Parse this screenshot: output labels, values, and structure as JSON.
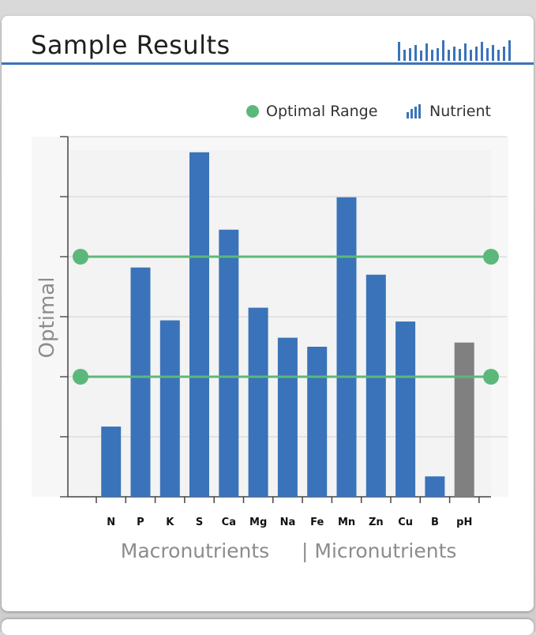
{
  "card": {
    "title": "Sample Results"
  },
  "legend": {
    "optimal_label": "Optimal Range",
    "nutrient_label": "Nutrient"
  },
  "colors": {
    "bar": "#3a73b9",
    "ph_bar": "#808080",
    "optimal": "#5cb87a",
    "header_rule": "#3a73b9"
  },
  "icons": {
    "header": "bar-chart-icon",
    "legend_optimal": "green-dot-icon",
    "legend_nutrient": "bar-chart-icon"
  },
  "chart_data": {
    "type": "bar",
    "ylabel": "Optimal",
    "categories": [
      "N",
      "P",
      "K",
      "S",
      "Ca",
      "Mg",
      "Na",
      "Fe",
      "Mn",
      "Zn",
      "Cu",
      "B",
      "pH"
    ],
    "values": [
      1.17,
      3.82,
      2.94,
      5.74,
      4.45,
      3.15,
      2.65,
      2.5,
      4.99,
      3.7,
      2.92,
      0.34,
      2.57
    ],
    "ylim": [
      0,
      6
    ],
    "optimal_range": [
      2,
      4
    ],
    "grid": true,
    "x_groups": [
      "Macronutrients",
      "| Micronutrients"
    ],
    "legend_placement": "top-right"
  }
}
